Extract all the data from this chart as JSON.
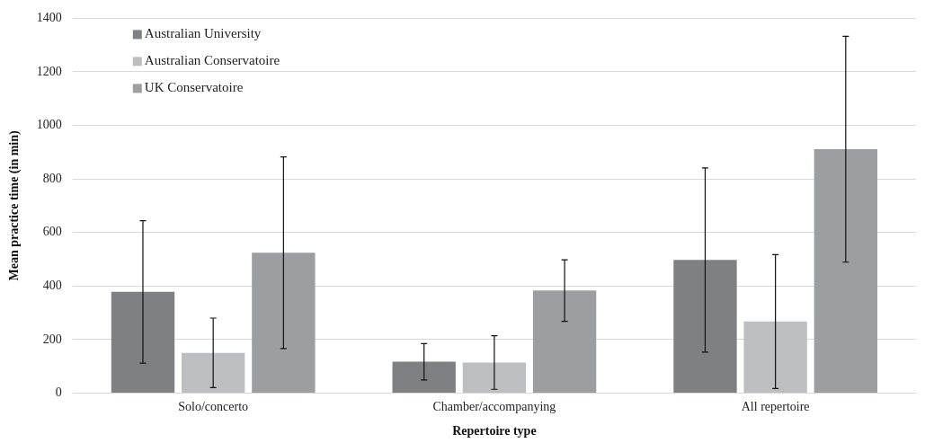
{
  "chart_data": {
    "type": "bar",
    "xlabel": "Repertoire type",
    "ylabel": "Mean practice time (in min)",
    "categories": [
      "Solo/concerto",
      "Chamber/accompanying",
      "All repertoire"
    ],
    "series": [
      {
        "name": "Australian University",
        "color": "#7f8083",
        "values": [
          378,
          117,
          497
        ],
        "errors": [
          266,
          68,
          344
        ]
      },
      {
        "name": "Australian Conservatoire",
        "color": "#bdbebf",
        "values": [
          150,
          114,
          267
        ],
        "errors": [
          130,
          100,
          250
        ]
      },
      {
        "name": "UK Conservatoire",
        "color": "#9d9ea1",
        "values": [
          524,
          383,
          911
        ],
        "errors": [
          358,
          115,
          422
        ]
      }
    ],
    "ylim": [
      0,
      1400
    ],
    "yticks": [
      0,
      200,
      400,
      600,
      800,
      1000,
      1200,
      1400
    ],
    "grid": "y",
    "legend": "top left"
  }
}
